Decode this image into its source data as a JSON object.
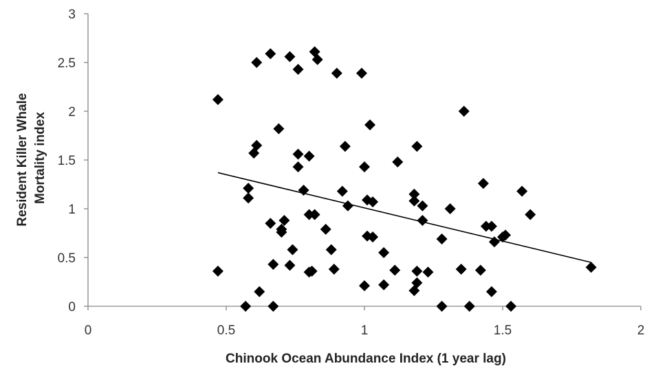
{
  "chart_data": {
    "type": "scatter",
    "title": "",
    "xlabel": "Chinook Ocean Abundance Index (1 year lag)",
    "ylabel": [
      "Resident Killer Whale",
      "Mortality index"
    ],
    "xlim": [
      0,
      2
    ],
    "ylim": [
      0,
      3
    ],
    "xticks": [
      "0",
      "0.5",
      "1",
      "1.5",
      "2"
    ],
    "yticks": [
      "0",
      "0.5",
      "1",
      "1.5",
      "2",
      "2.5",
      "3"
    ],
    "grid": false,
    "legend": "none",
    "marker": "diamond",
    "marker_color": "#000000",
    "points": [
      [
        0.47,
        2.12
      ],
      [
        0.47,
        0.36
      ],
      [
        0.57,
        0.0
      ],
      [
        0.58,
        1.11
      ],
      [
        0.58,
        1.21
      ],
      [
        0.6,
        1.57
      ],
      [
        0.61,
        1.65
      ],
      [
        0.61,
        2.5
      ],
      [
        0.62,
        0.15
      ],
      [
        0.66,
        0.85
      ],
      [
        0.66,
        2.59
      ],
      [
        0.67,
        0.43
      ],
      [
        0.67,
        0.0
      ],
      [
        0.69,
        1.82
      ],
      [
        0.7,
        0.76
      ],
      [
        0.7,
        0.79
      ],
      [
        0.71,
        0.88
      ],
      [
        0.73,
        2.56
      ],
      [
        0.73,
        0.42
      ],
      [
        0.74,
        0.58
      ],
      [
        0.76,
        1.56
      ],
      [
        0.76,
        1.43
      ],
      [
        0.76,
        2.43
      ],
      [
        0.78,
        1.19
      ],
      [
        0.8,
        1.54
      ],
      [
        0.8,
        0.94
      ],
      [
        0.8,
        0.35
      ],
      [
        0.81,
        0.36
      ],
      [
        0.82,
        0.94
      ],
      [
        0.82,
        2.61
      ],
      [
        0.83,
        2.53
      ],
      [
        0.86,
        0.79
      ],
      [
        0.88,
        0.58
      ],
      [
        0.89,
        0.38
      ],
      [
        0.9,
        2.39
      ],
      [
        0.92,
        1.18
      ],
      [
        0.93,
        1.64
      ],
      [
        0.94,
        1.03
      ],
      [
        0.99,
        2.39
      ],
      [
        1.0,
        0.21
      ],
      [
        1.0,
        1.43
      ],
      [
        1.01,
        0.72
      ],
      [
        1.01,
        1.09
      ],
      [
        1.02,
        1.86
      ],
      [
        1.03,
        0.71
      ],
      [
        1.03,
        1.07
      ],
      [
        1.07,
        0.55
      ],
      [
        1.07,
        0.22
      ],
      [
        1.11,
        0.37
      ],
      [
        1.12,
        1.48
      ],
      [
        1.18,
        0.16
      ],
      [
        1.18,
        1.15
      ],
      [
        1.18,
        1.08
      ],
      [
        1.19,
        0.24
      ],
      [
        1.19,
        0.36
      ],
      [
        1.19,
        1.64
      ],
      [
        1.21,
        1.03
      ],
      [
        1.21,
        0.88
      ],
      [
        1.23,
        0.35
      ],
      [
        1.28,
        0.0
      ],
      [
        1.28,
        0.69
      ],
      [
        1.31,
        1.0
      ],
      [
        1.35,
        0.38
      ],
      [
        1.36,
        2.0
      ],
      [
        1.38,
        0.0
      ],
      [
        1.42,
        0.37
      ],
      [
        1.43,
        1.26
      ],
      [
        1.44,
        0.82
      ],
      [
        1.46,
        0.82
      ],
      [
        1.46,
        0.15
      ],
      [
        1.47,
        0.66
      ],
      [
        1.5,
        0.71
      ],
      [
        1.51,
        0.73
      ],
      [
        1.53,
        0.0
      ],
      [
        1.57,
        1.18
      ],
      [
        1.6,
        0.94
      ],
      [
        1.82,
        0.4
      ]
    ],
    "trendline": {
      "x": [
        0.47,
        1.82
      ],
      "y": [
        1.37,
        0.45
      ]
    }
  }
}
